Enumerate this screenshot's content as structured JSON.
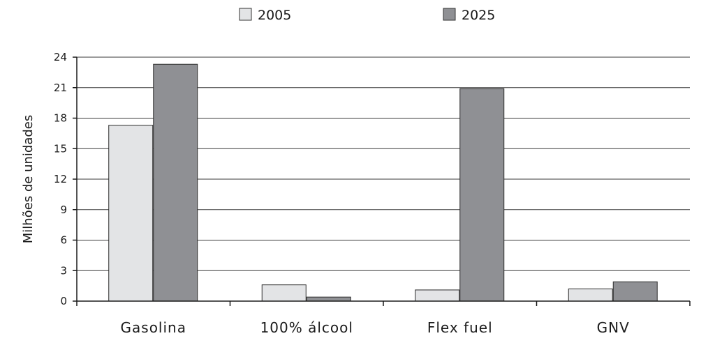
{
  "chart_data": {
    "type": "bar",
    "categories": [
      "Gasolina",
      "100% álcool",
      "Flex fuel",
      "GNV"
    ],
    "series": [
      {
        "name": "2005",
        "values": [
          17.3,
          1.6,
          1.1,
          1.2
        ],
        "color": "#e3e4e6"
      },
      {
        "name": "2025",
        "values": [
          23.3,
          0.4,
          20.9,
          1.9
        ],
        "color": "#8f9094"
      }
    ],
    "title": "",
    "xlabel": "",
    "ylabel": "Milhões de unidades",
    "ylim": [
      0,
      24
    ],
    "yticks": [
      0,
      3,
      6,
      9,
      12,
      15,
      18,
      21,
      24
    ],
    "grid": true,
    "legend_position": "top-center"
  }
}
